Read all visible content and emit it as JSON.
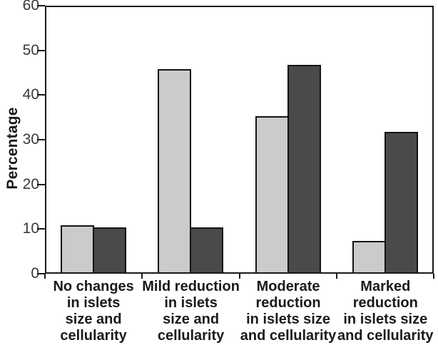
{
  "chart_data": {
    "type": "bar",
    "title": "",
    "xlabel": "",
    "ylabel": "Percentage",
    "ylim": [
      0,
      60
    ],
    "yticks": [
      0,
      10,
      20,
      30,
      40,
      50,
      60
    ],
    "grid": false,
    "legend_position": "none",
    "categories": [
      "No changes in islets size and cellularity",
      "Mild reduction in islets size and cellularity",
      "Moderate reduction in islets size and cellularity",
      "Marked reduction in islets size and cellularity"
    ],
    "category_label_lines": [
      [
        "No changes",
        "in islets",
        "size and",
        "cellularity"
      ],
      [
        "Mild reduction",
        "in islets",
        "size and",
        "cellularity"
      ],
      [
        "Moderate",
        "reduction",
        "in islets size",
        "and cellularity"
      ],
      [
        "Marked",
        "reduction",
        "in islets size",
        "and cellularity"
      ]
    ],
    "series": [
      {
        "name": "light-gray-series",
        "color": "#cbcbcb",
        "values": [
          10.5,
          45.5,
          35,
          7
        ]
      },
      {
        "name": "dark-gray-series",
        "color": "#4a4a4a",
        "values": [
          10,
          10,
          46.5,
          31.5
        ]
      }
    ]
  },
  "colors": {
    "light_bar": "#cbcbcb",
    "dark_bar": "#4a4a4a",
    "axis": "#1a1a1a",
    "background": "#ffffff",
    "tick_text": "#3a3a3a"
  }
}
